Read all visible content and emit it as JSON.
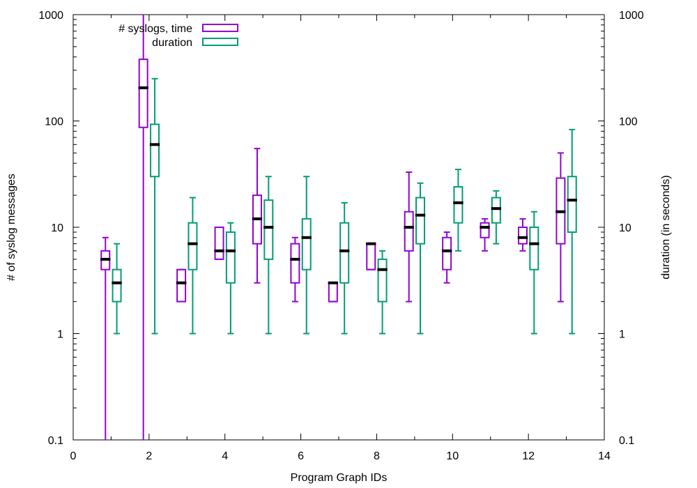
{
  "chart_data": {
    "type": "box",
    "xlabel": "Program Graph IDs",
    "ylabel": "# of syslog messages",
    "y2label": "duration (in seconds)",
    "xlim": [
      0,
      14
    ],
    "ylim": [
      0.1,
      1000
    ],
    "yscale": "log",
    "xticks": [
      0,
      2,
      4,
      6,
      8,
      10,
      12,
      14
    ],
    "yticks": [
      {
        "value": 0.1,
        "label": "0.1"
      },
      {
        "value": 1,
        "label": "1"
      },
      {
        "value": 10,
        "label": "10"
      },
      {
        "value": 100,
        "label": "100"
      },
      {
        "value": 1000,
        "label": "1000"
      }
    ],
    "legend_position": "top-left",
    "series": [
      {
        "name": "# syslogs, time",
        "color": "#9400d3",
        "boxes": [
          {
            "x": 0.85,
            "min": 0.1,
            "q1": 4,
            "median": 5,
            "q3": 6,
            "max": 8
          },
          {
            "x": 1.85,
            "min": 0.1,
            "q1": 87,
            "median": 205,
            "q3": 380,
            "max": 1000
          },
          {
            "x": 2.85,
            "min": 2,
            "q1": 2,
            "median": 3,
            "q3": 4,
            "max": 4
          },
          {
            "x": 3.85,
            "min": 5,
            "q1": 5,
            "median": 6,
            "q3": 10,
            "max": 10
          },
          {
            "x": 4.85,
            "min": 3,
            "q1": 7,
            "median": 12,
            "q3": 20,
            "max": 55
          },
          {
            "x": 5.85,
            "min": 2,
            "q1": 3,
            "median": 5,
            "q3": 7,
            "max": 8
          },
          {
            "x": 6.85,
            "min": 2,
            "q1": 2,
            "median": 3,
            "q3": 3,
            "max": 3
          },
          {
            "x": 7.85,
            "min": 4,
            "q1": 4,
            "median": 7,
            "q3": 7,
            "max": 7
          },
          {
            "x": 8.85,
            "min": 2,
            "q1": 6,
            "median": 10,
            "q3": 14,
            "max": 33
          },
          {
            "x": 9.85,
            "min": 3,
            "q1": 4,
            "median": 6,
            "q3": 8,
            "max": 9
          },
          {
            "x": 10.85,
            "min": 6,
            "q1": 8,
            "median": 10,
            "q3": 11,
            "max": 12
          },
          {
            "x": 11.85,
            "min": 6,
            "q1": 7,
            "median": 8,
            "q3": 10,
            "max": 12
          },
          {
            "x": 12.85,
            "min": 2,
            "q1": 7,
            "median": 14,
            "q3": 29,
            "max": 50
          }
        ]
      },
      {
        "name": "duration",
        "color": "#009e73",
        "boxes": [
          {
            "x": 1.15,
            "min": 1,
            "q1": 2,
            "median": 3,
            "q3": 4,
            "max": 7
          },
          {
            "x": 2.15,
            "min": 1,
            "q1": 30,
            "median": 60,
            "q3": 93,
            "max": 250
          },
          {
            "x": 3.15,
            "min": 1,
            "q1": 4,
            "median": 7,
            "q3": 11,
            "max": 19
          },
          {
            "x": 4.15,
            "min": 1,
            "q1": 3,
            "median": 6,
            "q3": 9,
            "max": 11
          },
          {
            "x": 5.15,
            "min": 1,
            "q1": 5,
            "median": 10,
            "q3": 18,
            "max": 30
          },
          {
            "x": 6.15,
            "min": 1,
            "q1": 4,
            "median": 8,
            "q3": 12,
            "max": 30
          },
          {
            "x": 7.15,
            "min": 1,
            "q1": 3,
            "median": 6,
            "q3": 11,
            "max": 17
          },
          {
            "x": 8.15,
            "min": 1,
            "q1": 2,
            "median": 4,
            "q3": 5,
            "max": 6
          },
          {
            "x": 9.15,
            "min": 1,
            "q1": 7,
            "median": 13,
            "q3": 19,
            "max": 26
          },
          {
            "x": 10.15,
            "min": 6,
            "q1": 11,
            "median": 17,
            "q3": 24,
            "max": 35
          },
          {
            "x": 11.15,
            "min": 7,
            "q1": 11,
            "median": 15,
            "q3": 19,
            "max": 22
          },
          {
            "x": 12.15,
            "min": 1,
            "q1": 4,
            "median": 7,
            "q3": 10,
            "max": 14
          },
          {
            "x": 13.15,
            "min": 1,
            "q1": 9,
            "median": 18,
            "q3": 30,
            "max": 83
          }
        ]
      }
    ]
  }
}
